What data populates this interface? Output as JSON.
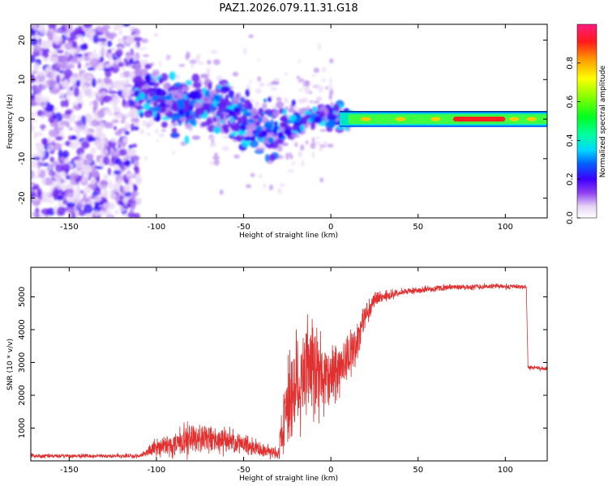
{
  "title": "PAZ1.2026.079.11.31.G18",
  "chart_data": [
    {
      "type": "heatmap",
      "xlabel": "Height of straight line (km)",
      "ylabel": "Frequency (Hz)",
      "xlim": [
        -172,
        124
      ],
      "ylim": [
        -25,
        24
      ],
      "xticks": [
        -150,
        -100,
        -50,
        0,
        50,
        100
      ],
      "yticks": [
        -20,
        -10,
        0,
        10,
        20
      ],
      "colorbar": {
        "label": "Normalized spectral amplitude",
        "range": [
          0,
          1
        ],
        "ticks": [
          "0.0",
          "0.2",
          "0.4",
          "0.6",
          "0.8"
        ]
      },
      "features": {
        "ridge_track": [
          [
            -112,
            9
          ],
          [
            -100,
            5
          ],
          [
            -90,
            3.5
          ],
          [
            -80,
            3
          ],
          [
            -70,
            4
          ],
          [
            -60,
            2
          ],
          [
            -50,
            0.5
          ],
          [
            -40,
            -3
          ],
          [
            -30,
            -2
          ],
          [
            -20,
            -1
          ],
          [
            -10,
            0.5
          ],
          [
            0,
            1.2
          ],
          [
            10,
            0
          ],
          [
            20,
            0
          ],
          [
            50,
            0
          ],
          [
            80,
            0
          ],
          [
            100,
            0
          ],
          [
            124,
            0
          ]
        ],
        "strong_band": {
          "from_km": 70,
          "to_km": 100,
          "freq_hz": 0,
          "amplitude": 1.0
        }
      }
    },
    {
      "type": "line",
      "xlabel": "Height of straight line (km)",
      "ylabel": "SNR (10 * v/v)",
      "xlim": [
        -172,
        124
      ],
      "ylim": [
        0,
        5900
      ],
      "xticks": [
        -150,
        -100,
        -50,
        0,
        50,
        100
      ],
      "yticks": [
        1000,
        2000,
        3000,
        4000,
        5000
      ],
      "color": "#e03030",
      "envelope": {
        "x": [
          -172,
          -110,
          -100,
          -90,
          -80,
          -70,
          -60,
          -50,
          -40,
          -30,
          -26,
          -20,
          -15,
          -10,
          -5,
          0,
          5,
          10,
          15,
          20,
          25,
          30,
          40,
          50,
          60,
          70,
          80,
          90,
          100,
          112,
          113,
          124
        ],
        "mean": [
          150,
          150,
          400,
          500,
          700,
          650,
          600,
          500,
          350,
          250,
          1700,
          2300,
          2600,
          2700,
          2600,
          2600,
          2900,
          3200,
          3600,
          4500,
          4900,
          5000,
          5150,
          5200,
          5250,
          5300,
          5300,
          5320,
          5320,
          5300,
          2850,
          2800
        ],
        "spread": [
          60,
          60,
          250,
          350,
          450,
          400,
          350,
          300,
          200,
          150,
          1400,
          1700,
          1600,
          1500,
          1100,
          900,
          800,
          700,
          600,
          400,
          200,
          150,
          100,
          90,
          90,
          80,
          80,
          80,
          80,
          80,
          60,
          60
        ]
      }
    }
  ]
}
